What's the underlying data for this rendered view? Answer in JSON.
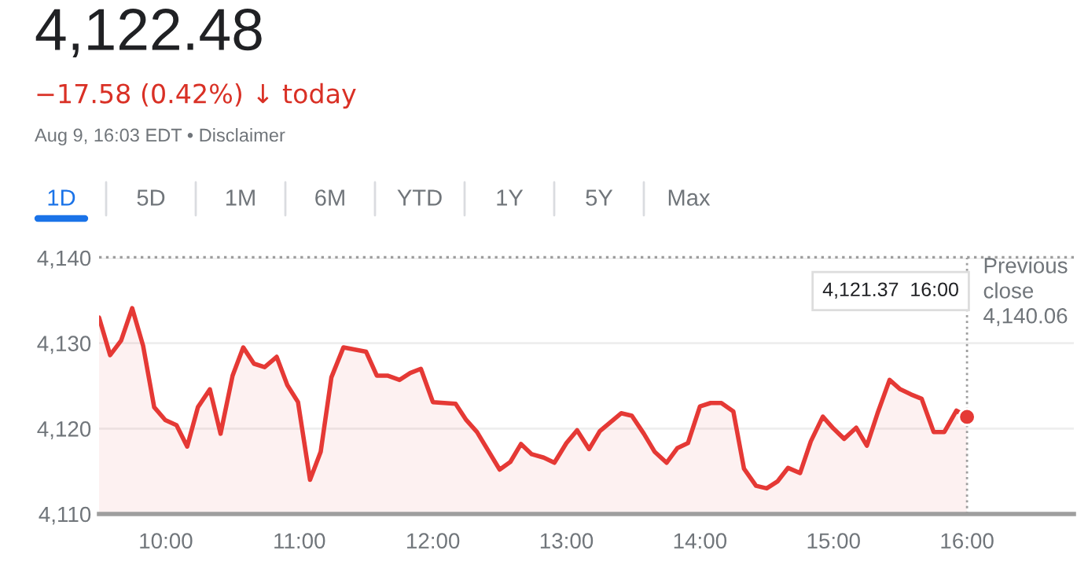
{
  "chart_data": {
    "type": "area",
    "title": "4,122.48",
    "subtitle": "−17.58 (0.42%) ↓ today",
    "annotations": [
      "Aug 9, 16:03 EDT • Disclaimer",
      "1D",
      "5D",
      "1M",
      "6M",
      "YTD",
      "1Y",
      "5Y",
      "Max",
      "4,121.37  16:00"
    ],
    "series": [
      {
        "color": "#e53935",
        "x": [
          9.5,
          9.583,
          9.665,
          9.748,
          9.83,
          9.913,
          9.996,
          10.08,
          10.16,
          10.24,
          10.33,
          10.41,
          10.5,
          10.58,
          10.66,
          10.74,
          10.83,
          10.91,
          10.99,
          11.08,
          11.16,
          11.24,
          11.33,
          11.5,
          11.58,
          11.66,
          11.75,
          11.83,
          11.91,
          12.0,
          12.17,
          12.25,
          12.33,
          12.5,
          12.58,
          12.66,
          12.74,
          12.83,
          12.91,
          13.0,
          13.08,
          13.17,
          13.25,
          13.41,
          13.49,
          13.58,
          13.66,
          13.75,
          13.83,
          13.91,
          14.0,
          14.08,
          14.16,
          14.25,
          14.33,
          14.42,
          14.5,
          14.58,
          14.66,
          14.75,
          14.83,
          14.92,
          15.0,
          15.08,
          15.17,
          15.25,
          15.33,
          15.42,
          15.5,
          15.58,
          15.66,
          15.75,
          15.83,
          15.92,
          16.0
        ],
        "values": [
          4133.0,
          4128.6,
          4130.3,
          4134.1,
          4129.7,
          4122.5,
          4121.0,
          4120.4,
          4117.9,
          4122.5,
          4124.6,
          4119.4,
          4126.2,
          4129.5,
          4127.6,
          4127.2,
          4128.4,
          4125.1,
          4123.1,
          4114.0,
          4117.3,
          4126.0,
          4129.5,
          4129.0,
          4126.2,
          4126.2,
          4125.7,
          4126.5,
          4127.0,
          4123.1,
          4122.9,
          4121.0,
          4119.6,
          4115.2,
          4116.1,
          4118.2,
          4117.0,
          4116.6,
          4116.0,
          4118.3,
          4119.8,
          4117.6,
          4119.7,
          4121.8,
          4121.5,
          4119.4,
          4117.3,
          4116.0,
          4117.7,
          4118.3,
          4122.6,
          4123.0,
          4123.0,
          4122.0,
          4115.3,
          4113.3,
          4113.0,
          4113.8,
          4115.4,
          4114.8,
          4118.5,
          4121.4,
          4120.0,
          4118.8,
          4120.1,
          4118.0,
          4121.8,
          4125.7,
          4124.6,
          4124.0,
          4123.5,
          4119.6,
          4119.6,
          4122.1,
          4121.37
        ]
      },
      {
        "type": "scatter",
        "color": "#e53935",
        "marker": "circle",
        "x": [
          16.0
        ],
        "values": [
          4121.37
        ]
      }
    ],
    "xlim": [
      9.5,
      16.8
    ],
    "ylim": [
      4110,
      4140
    ],
    "xticks": [
      {
        "value": 10,
        "label": "10:00"
      },
      {
        "value": 11,
        "label": "11:00"
      },
      {
        "value": 12,
        "label": "12:00"
      },
      {
        "value": 13,
        "label": "13:00"
      },
      {
        "value": 14,
        "label": "14:00"
      },
      {
        "value": 15,
        "label": "15:00"
      },
      {
        "value": 16,
        "label": "16:00"
      }
    ],
    "yticks": [
      {
        "value": 4110,
        "label": "4,110"
      },
      {
        "value": 4120,
        "label": "4,120"
      },
      {
        "value": 4130,
        "label": "4,130"
      },
      {
        "value": 4140,
        "label": "4,140"
      }
    ],
    "ref_lines": [
      {
        "axis": "y",
        "value": 4140.06,
        "label": "Previous\nclose\n4,140.06",
        "color": "#9e9e9e",
        "line_style": "dotted"
      },
      {
        "axis": "x",
        "value": 16,
        "color": "#9e9e9e",
        "line_style": "dotted"
      }
    ],
    "grid": "y",
    "marker": "none",
    "line_style": "solid",
    "legend": false
  }
}
